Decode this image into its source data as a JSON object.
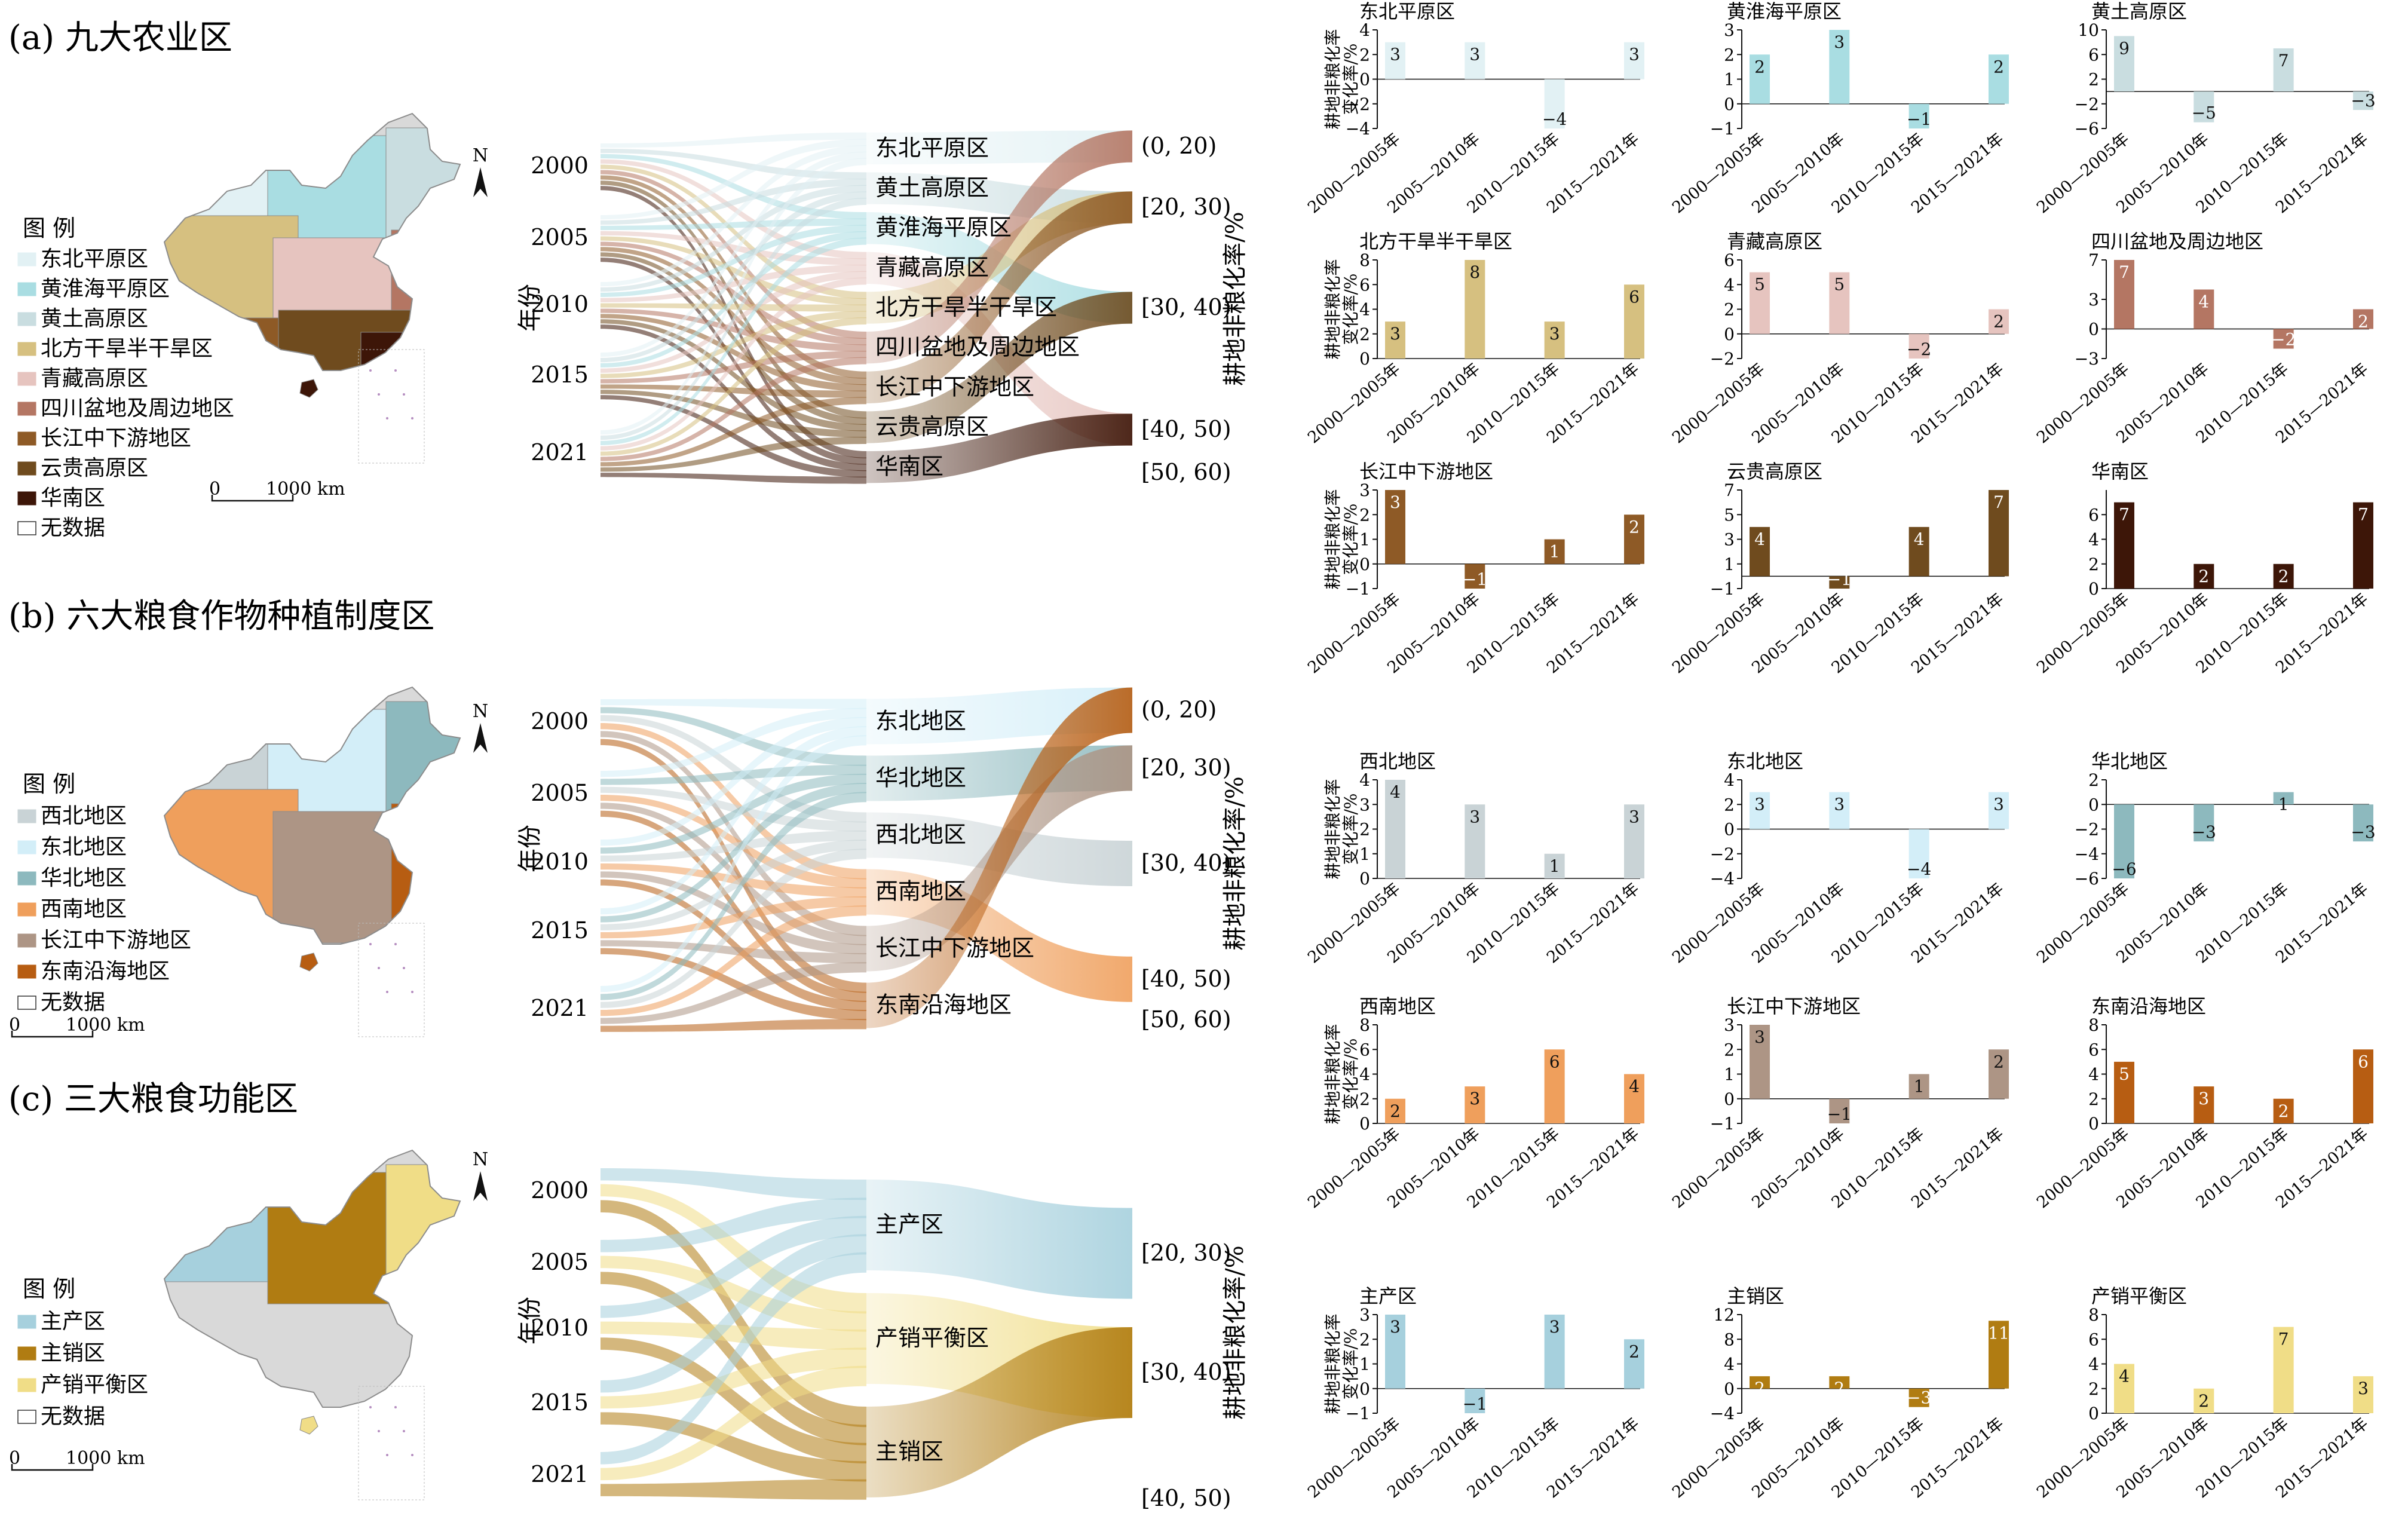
{
  "x_categories": [
    "2000—2005年",
    "2005—2010年",
    "2010—2015年",
    "2015—2021年"
  ],
  "ylabel_line1": "耕地非粮化率",
  "ylabel_line2": "变化率/%",
  "sankey_axis_label": "年份",
  "sankey_right_label": "耕地非粮化率/%",
  "years": [
    "2000",
    "2005",
    "2010",
    "2015",
    "2021"
  ],
  "bins": [
    "(0, 20)",
    "[20, 30)",
    "[30,  40)",
    "[40, 50)",
    "[50, 60)"
  ],
  "map": {
    "north": "N",
    "scale_zero": "0",
    "scale_dist": "1000 km",
    "legend_title": "图  例",
    "no_data": "无数据"
  },
  "panels": [
    {
      "id": "a",
      "title": "(a) 九大农业区",
      "legend": [
        {
          "name": "东北平原区",
          "color": "#e2f1f4"
        },
        {
          "name": "黄淮海平原区",
          "color": "#a9dde2"
        },
        {
          "name": "黄土高原区",
          "color": "#c9dde0"
        },
        {
          "name": "北方干旱半干旱区",
          "color": "#d6c080"
        },
        {
          "name": "青藏高原区",
          "color": "#e6c4bf"
        },
        {
          "name": "四川盆地及周边地区",
          "color": "#b47663"
        },
        {
          "name": "长江中下游地区",
          "color": "#8e5a26"
        },
        {
          "name": "云贵高原区",
          "color": "#6f4b1e"
        },
        {
          "name": "华南区",
          "color": "#3d1608"
        }
      ],
      "sankey_regions": [
        "东北平原区",
        "黄土高原区",
        "黄淮海平原区",
        "青藏高原区",
        "北方干旱半干旱区",
        "四川盆地及周边地区",
        "长江中下游地区",
        "云贵高原区",
        "华南区"
      ],
      "sankey_bins": [
        "(0, 20)",
        "[20, 30)",
        "[30,  40)",
        "[40, 50)",
        "[50, 60)"
      ],
      "chart_data": [
        {
          "type": "bar",
          "title": "东北平原区",
          "color": "#e2f1f4",
          "values": [
            3,
            3,
            -4,
            3
          ],
          "ylim": [
            -4,
            4
          ],
          "yticks": [
            -4,
            -2,
            0,
            2,
            4
          ]
        },
        {
          "type": "bar",
          "title": "黄淮海平原区",
          "color": "#a9dde2",
          "values": [
            2,
            3,
            -1,
            2
          ],
          "ylim": [
            -1,
            3
          ],
          "yticks": [
            -1,
            0,
            1,
            2,
            3
          ]
        },
        {
          "type": "bar",
          "title": "黄土高原区",
          "color": "#c9dde0",
          "values": [
            9,
            -5,
            7,
            -3
          ],
          "ylim": [
            -6,
            10
          ],
          "yticks": [
            -6,
            -2,
            2,
            6,
            10
          ]
        },
        {
          "type": "bar",
          "title": "北方干旱半干旱区",
          "color": "#d6c080",
          "values": [
            3,
            8,
            3,
            6
          ],
          "ylim": [
            0,
            8
          ],
          "yticks": [
            0,
            2,
            4,
            6,
            8
          ]
        },
        {
          "type": "bar",
          "title": "青藏高原区",
          "color": "#e6c4bf",
          "values": [
            5,
            5,
            -2,
            2
          ],
          "ylim": [
            -2,
            6
          ],
          "yticks": [
            -2,
            0,
            2,
            4,
            6
          ]
        },
        {
          "type": "bar",
          "title": "四川盆地及周边地区",
          "color": "#b47663",
          "values": [
            7,
            4,
            -2,
            2
          ],
          "ylim": [
            -3,
            7
          ],
          "yticks": [
            -3,
            0,
            3,
            7
          ]
        },
        {
          "type": "bar",
          "title": "长江中下游地区",
          "color": "#8e5a26",
          "values": [
            3,
            -1,
            1,
            2
          ],
          "ylim": [
            -1,
            3
          ],
          "yticks": [
            -1,
            0,
            1,
            2,
            3
          ]
        },
        {
          "type": "bar",
          "title": "云贵高原区",
          "color": "#6f4b1e",
          "values": [
            4,
            -1,
            4,
            7
          ],
          "ylim": [
            -1,
            7
          ],
          "yticks": [
            -1,
            1,
            3,
            5,
            7
          ]
        },
        {
          "type": "bar",
          "title": "华南区",
          "color": "#3d1608",
          "values": [
            7,
            2,
            2,
            7
          ],
          "ylim": [
            0,
            8
          ],
          "yticks": [
            0,
            2,
            4,
            6
          ]
        }
      ]
    },
    {
      "id": "b",
      "title": "(b) 六大粮食作物种植制度区",
      "legend": [
        {
          "name": "西北地区",
          "color": "#c9d3d6"
        },
        {
          "name": "东北地区",
          "color": "#d3eef8"
        },
        {
          "name": "华北地区",
          "color": "#8db9be"
        },
        {
          "name": "西南地区",
          "color": "#ef9f5c"
        },
        {
          "name": "长江中下游地区",
          "color": "#ad9585"
        },
        {
          "name": "东南沿海地区",
          "color": "#b75d12"
        }
      ],
      "sankey_regions": [
        "东北地区",
        "华北地区",
        "西北地区",
        "西南地区",
        "长江中下游地区",
        "东南沿海地区"
      ],
      "sankey_bins": [
        "(0, 20)",
        "[20, 30)",
        "[30,  40)",
        "[40, 50)",
        "[50, 60)"
      ],
      "chart_data": [
        {
          "type": "bar",
          "title": "西北地区",
          "color": "#c9d3d6",
          "values": [
            4,
            3,
            1,
            3
          ],
          "ylim": [
            0,
            4
          ],
          "yticks": [
            0,
            1,
            2,
            3,
            4
          ]
        },
        {
          "type": "bar",
          "title": "东北地区",
          "color": "#d3eef8",
          "values": [
            3,
            3,
            -4,
            3
          ],
          "ylim": [
            -4,
            4
          ],
          "yticks": [
            -4,
            -2,
            0,
            2,
            4
          ]
        },
        {
          "type": "bar",
          "title": "华北地区",
          "color": "#8db9be",
          "values": [
            -6,
            -3,
            1,
            -3
          ],
          "ylim": [
            -6,
            2
          ],
          "yticks": [
            -6,
            -4,
            -2,
            0,
            2
          ]
        },
        {
          "type": "bar",
          "title": "西南地区",
          "color": "#ef9f5c",
          "values": [
            2,
            3,
            6,
            4
          ],
          "ylim": [
            0,
            8
          ],
          "yticks": [
            0,
            2,
            4,
            6,
            8
          ]
        },
        {
          "type": "bar",
          "title": "长江中下游地区",
          "color": "#ad9585",
          "values": [
            3,
            -1,
            1,
            2
          ],
          "ylim": [
            -1,
            3
          ],
          "yticks": [
            -1,
            0,
            1,
            2,
            3
          ]
        },
        {
          "type": "bar",
          "title": "东南沿海地区",
          "color": "#b75d12",
          "values": [
            5,
            3,
            2,
            6
          ],
          "ylim": [
            0,
            8
          ],
          "yticks": [
            0,
            2,
            4,
            6,
            8
          ]
        }
      ]
    },
    {
      "id": "c",
      "title": "(c) 三大粮食功能区",
      "legend": [
        {
          "name": "主产区",
          "color": "#a6d0dd"
        },
        {
          "name": "主销区",
          "color": "#b07c12"
        },
        {
          "name": "产销平衡区",
          "color": "#f0dd87"
        }
      ],
      "sankey_regions": [
        "主产区",
        "产销平衡区",
        "主销区"
      ],
      "sankey_bins": [
        "[20, 30)",
        "[30,  40)",
        "[40, 50)"
      ],
      "chart_data": [
        {
          "type": "bar",
          "title": "主产区",
          "color": "#a6d0dd",
          "values": [
            3,
            -1,
            3,
            2
          ],
          "ylim": [
            -1,
            3
          ],
          "yticks": [
            -1,
            0,
            1,
            2,
            3
          ]
        },
        {
          "type": "bar",
          "title": "主销区",
          "color": "#b07c12",
          "values": [
            2,
            2,
            -3,
            11
          ],
          "ylim": [
            -4,
            12
          ],
          "yticks": [
            -4,
            0,
            4,
            8,
            12
          ]
        },
        {
          "type": "bar",
          "title": "产销平衡区",
          "color": "#f0dd87",
          "values": [
            4,
            2,
            7,
            3
          ],
          "ylim": [
            0,
            8
          ],
          "yticks": [
            0,
            2,
            4,
            6,
            8
          ]
        }
      ]
    }
  ]
}
